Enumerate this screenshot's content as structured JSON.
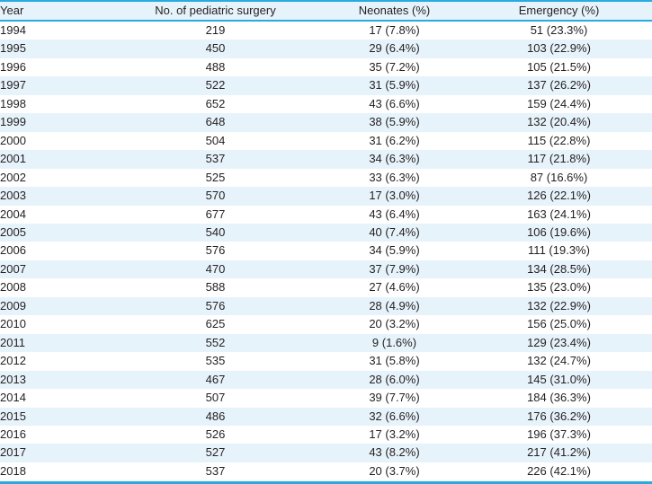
{
  "colors": {
    "accent": "#29abe2",
    "row_stripe": "#e7f3fb",
    "header_bg": "#e7f3fb",
    "text": "#231f20"
  },
  "table": {
    "columns": [
      {
        "key": "year",
        "label": "Year",
        "align": "left"
      },
      {
        "key": "pediatric-surgery-count",
        "label": "No. of pediatric surgery",
        "align": "center"
      },
      {
        "key": "neonates",
        "label": "Neonates (%)",
        "align": "center"
      },
      {
        "key": "emergency",
        "label": "Emergency (%)",
        "align": "center"
      }
    ],
    "rows": [
      [
        "1994",
        "219",
        "17 (7.8%)",
        "51 (23.3%)"
      ],
      [
        "1995",
        "450",
        "29 (6.4%)",
        "103 (22.9%)"
      ],
      [
        "1996",
        "488",
        "35 (7.2%)",
        "105 (21.5%)"
      ],
      [
        "1997",
        "522",
        "31 (5.9%)",
        "137 (26.2%)"
      ],
      [
        "1998",
        "652",
        "43 (6.6%)",
        "159 (24.4%)"
      ],
      [
        "1999",
        "648",
        "38 (5.9%)",
        "132 (20.4%)"
      ],
      [
        "2000",
        "504",
        "31 (6.2%)",
        "115 (22.8%)"
      ],
      [
        "2001",
        "537",
        "34 (6.3%)",
        "117 (21.8%)"
      ],
      [
        "2002",
        "525",
        "33 (6.3%)",
        "87 (16.6%)"
      ],
      [
        "2003",
        "570",
        "17 (3.0%)",
        "126 (22.1%)"
      ],
      [
        "2004",
        "677",
        "43 (6.4%)",
        "163 (24.1%)"
      ],
      [
        "2005",
        "540",
        "40 (7.4%)",
        "106 (19.6%)"
      ],
      [
        "2006",
        "576",
        "34 (5.9%)",
        "111 (19.3%)"
      ],
      [
        "2007",
        "470",
        "37 (7.9%)",
        "134 (28.5%)"
      ],
      [
        "2008",
        "588",
        "27 (4.6%)",
        "135 (23.0%)"
      ],
      [
        "2009",
        "576",
        "28 (4.9%)",
        "132 (22.9%)"
      ],
      [
        "2010",
        "625",
        "20 (3.2%)",
        "156 (25.0%)"
      ],
      [
        "2011",
        "552",
        "9 (1.6%)",
        "129 (23.4%)"
      ],
      [
        "2012",
        "535",
        "31 (5.8%)",
        "132 (24.7%)"
      ],
      [
        "2013",
        "467",
        "28 (6.0%)",
        "145 (31.0%)"
      ],
      [
        "2014",
        "507",
        "39 (7.7%)",
        "184 (36.3%)"
      ],
      [
        "2015",
        "486",
        "32 (6.6%)",
        "176 (36.2%)"
      ],
      [
        "2016",
        "526",
        "17 (3.2%)",
        "196 (37.3%)"
      ],
      [
        "2017",
        "527",
        "43 (8.2%)",
        "217 (41.2%)"
      ],
      [
        "2018",
        "537",
        "20 (3.7%)",
        "226 (42.1%)"
      ]
    ]
  }
}
